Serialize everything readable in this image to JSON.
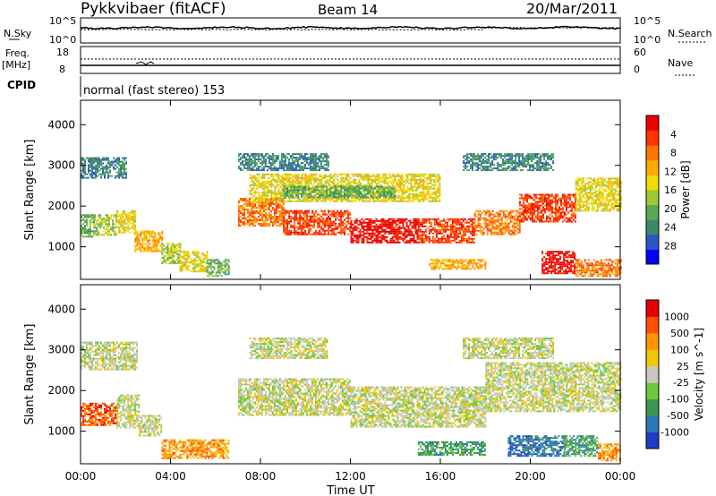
{
  "header": {
    "title": "Pykkvibaer (fitACF)",
    "beam": "Beam 14",
    "date": "20/Mar/2011",
    "cpid_label": "CPID",
    "cpid_value": "normal (fast stereo) 153"
  },
  "nsky_panel": {
    "left_label": "N.Sky",
    "left_ticks": [
      "10^5",
      "10^0"
    ],
    "right_label": "N.Search",
    "right_ticks": [
      "10^5",
      "10^0"
    ]
  },
  "freq_panel": {
    "left_label_top": "Freq.",
    "left_label_bottom": "[MHz]",
    "left_ticks": [
      "18",
      "8"
    ],
    "right_label": "Nave",
    "right_ticks": [
      "60",
      "0"
    ]
  },
  "chart_data": [
    {
      "type": "heatmap",
      "name": "power",
      "ylabel": "Slant Range [km]",
      "ylim": [
        200,
        4600
      ],
      "xlim": [
        0,
        24
      ],
      "yticks": [
        "1000",
        "2000",
        "3000",
        "4000"
      ],
      "colorbar": {
        "label": "Power [dB]",
        "ticks": [
          "4",
          "8",
          "12",
          "16",
          "20",
          "24",
          "28"
        ],
        "colors": [
          "#0000ff",
          "#2b55c8",
          "#3a8a6a",
          "#5aa855",
          "#a0c832",
          "#f0dc00",
          "#ffaa00",
          "#ff7700",
          "#ff3300",
          "#ee0000"
        ]
      },
      "bands": [
        {
          "x": [
            0.0,
            0.6
          ],
          "y": [
            1250,
            1800
          ],
          "level": 3
        },
        {
          "x": [
            0.6,
            1.6
          ],
          "y": [
            1300,
            1800
          ],
          "level": 4
        },
        {
          "x": [
            1.6,
            2.4
          ],
          "y": [
            1350,
            1900
          ],
          "level": 5
        },
        {
          "x": [
            2.4,
            3.6
          ],
          "y": [
            900,
            1400
          ],
          "level": 6
        },
        {
          "x": [
            3.6,
            4.4
          ],
          "y": [
            600,
            1100
          ],
          "level": 4
        },
        {
          "x": [
            4.4,
            5.6
          ],
          "y": [
            400,
            900
          ],
          "level": 5
        },
        {
          "x": [
            5.6,
            6.6
          ],
          "y": [
            300,
            700
          ],
          "level": 3
        },
        {
          "x": [
            7.0,
            9.0
          ],
          "y": [
            1500,
            2200
          ],
          "level": 7
        },
        {
          "x": [
            9.0,
            12.0
          ],
          "y": [
            1300,
            1900
          ],
          "level": 8
        },
        {
          "x": [
            12.0,
            15.0
          ],
          "y": [
            1100,
            1700
          ],
          "level": 9
        },
        {
          "x": [
            15.0,
            17.5
          ],
          "y": [
            1100,
            1700
          ],
          "level": 8
        },
        {
          "x": [
            17.5,
            19.5
          ],
          "y": [
            1300,
            1900
          ],
          "level": 7
        },
        {
          "x": [
            19.5,
            22.0
          ],
          "y": [
            1600,
            2300
          ],
          "level": 8
        },
        {
          "x": [
            22.0,
            24.0
          ],
          "y": [
            1900,
            2700
          ],
          "level": 5
        },
        {
          "x": [
            7.5,
            16.0
          ],
          "y": [
            2100,
            2800
          ],
          "level": 5
        },
        {
          "x": [
            9.0,
            14.0
          ],
          "y": [
            2200,
            2500
          ],
          "level": 3
        },
        {
          "x": [
            0.0,
            2.0
          ],
          "y": [
            2700,
            3200
          ],
          "level": 2
        },
        {
          "x": [
            7.0,
            11.0
          ],
          "y": [
            2900,
            3300
          ],
          "level": 2
        },
        {
          "x": [
            17.0,
            21.0
          ],
          "y": [
            2900,
            3300
          ],
          "level": 2
        },
        {
          "x": [
            20.5,
            22.0
          ],
          "y": [
            350,
            900
          ],
          "level": 9
        },
        {
          "x": [
            22.0,
            24.0
          ],
          "y": [
            300,
            700
          ],
          "level": 7
        },
        {
          "x": [
            15.5,
            18.0
          ],
          "y": [
            450,
            700
          ],
          "level": 6
        }
      ]
    },
    {
      "type": "heatmap",
      "name": "velocity",
      "ylabel": "Slant Range [km]",
      "xlabel": "Time UT",
      "ylim": [
        200,
        4600
      ],
      "xlim": [
        0,
        24
      ],
      "yticks": [
        "1000",
        "2000",
        "3000",
        "4000"
      ],
      "xticks": [
        "00:00",
        "04:00",
        "08:00",
        "12:00",
        "16:00",
        "20:00",
        "00:00"
      ],
      "colorbar": {
        "label": "Velocity [m s^-1]",
        "ticks": [
          "1000",
          "500",
          "100",
          "25",
          "-25",
          "-100",
          "-500",
          "-1000"
        ],
        "colors": [
          "#1e3cc8",
          "#2878b4",
          "#3c9650",
          "#6ec83c",
          "#c8c8c0",
          "#f0c800",
          "#ff9600",
          "#ff5000",
          "#e60000"
        ]
      },
      "bands": [
        {
          "x": [
            0.0,
            1.6
          ],
          "y": [
            1150,
            1700
          ],
          "level": 7
        },
        {
          "x": [
            1.6,
            2.6
          ],
          "y": [
            1100,
            1900
          ],
          "level": 4
        },
        {
          "x": [
            2.6,
            3.6
          ],
          "y": [
            900,
            1400
          ],
          "level": 4
        },
        {
          "x": [
            3.6,
            6.6
          ],
          "y": [
            350,
            800
          ],
          "level": 6
        },
        {
          "x": [
            7.0,
            12.0
          ],
          "y": [
            1400,
            2300
          ],
          "level": 4
        },
        {
          "x": [
            12.0,
            18.0
          ],
          "y": [
            1100,
            2100
          ],
          "level": 4
        },
        {
          "x": [
            18.0,
            24.0
          ],
          "y": [
            1500,
            2700
          ],
          "level": 4
        },
        {
          "x": [
            0.0,
            2.5
          ],
          "y": [
            2500,
            3200
          ],
          "level": 4
        },
        {
          "x": [
            7.5,
            11.0
          ],
          "y": [
            2800,
            3300
          ],
          "level": 4
        },
        {
          "x": [
            17.0,
            21.0
          ],
          "y": [
            2800,
            3300
          ],
          "level": 4
        },
        {
          "x": [
            15.0,
            18.0
          ],
          "y": [
            400,
            750
          ],
          "level": 2
        },
        {
          "x": [
            19.0,
            21.5
          ],
          "y": [
            400,
            900
          ],
          "level": 1
        },
        {
          "x": [
            21.5,
            23.0
          ],
          "y": [
            400,
            900
          ],
          "level": 2
        },
        {
          "x": [
            23.0,
            24.0
          ],
          "y": [
            300,
            700
          ],
          "level": 6
        }
      ]
    }
  ]
}
